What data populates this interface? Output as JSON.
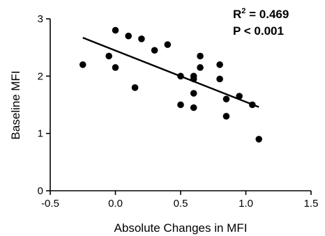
{
  "chart_data": {
    "type": "scatter",
    "xlabel": "Absolute Changes in MFI",
    "ylabel": "Baseline MFI",
    "xlim": [
      -0.5,
      1.5
    ],
    "ylim": [
      0,
      3
    ],
    "xticks": [
      "-0.5",
      "0.0",
      "0.5",
      "1.0",
      "1.5"
    ],
    "yticks": [
      "0",
      "1",
      "2",
      "3"
    ],
    "annotation": {
      "r2_prefix": "R",
      "r2_sup": "2",
      "r2_value": " = 0.469",
      "p_text": "P < 0.001"
    },
    "points": [
      {
        "x": -0.25,
        "y": 2.2
      },
      {
        "x": -0.05,
        "y": 2.35
      },
      {
        "x": 0.0,
        "y": 2.8
      },
      {
        "x": 0.0,
        "y": 2.15
      },
      {
        "x": 0.1,
        "y": 2.7
      },
      {
        "x": 0.15,
        "y": 1.8
      },
      {
        "x": 0.2,
        "y": 2.65
      },
      {
        "x": 0.3,
        "y": 2.45
      },
      {
        "x": 0.4,
        "y": 2.55
      },
      {
        "x": 0.5,
        "y": 2.0
      },
      {
        "x": 0.5,
        "y": 1.5
      },
      {
        "x": 0.6,
        "y": 2.0
      },
      {
        "x": 0.6,
        "y": 1.95
      },
      {
        "x": 0.6,
        "y": 1.7
      },
      {
        "x": 0.6,
        "y": 1.45
      },
      {
        "x": 0.65,
        "y": 2.35
      },
      {
        "x": 0.65,
        "y": 2.15
      },
      {
        "x": 0.8,
        "y": 2.2
      },
      {
        "x": 0.8,
        "y": 1.95
      },
      {
        "x": 0.85,
        "y": 1.6
      },
      {
        "x": 0.85,
        "y": 1.3
      },
      {
        "x": 0.95,
        "y": 1.65
      },
      {
        "x": 1.05,
        "y": 1.5
      },
      {
        "x": 1.1,
        "y": 0.9
      }
    ],
    "regression": {
      "x1": -0.25,
      "y1": 2.67,
      "x2": 1.1,
      "y2": 1.46
    },
    "grid": false,
    "legend": "none",
    "point_color": "#000000"
  }
}
